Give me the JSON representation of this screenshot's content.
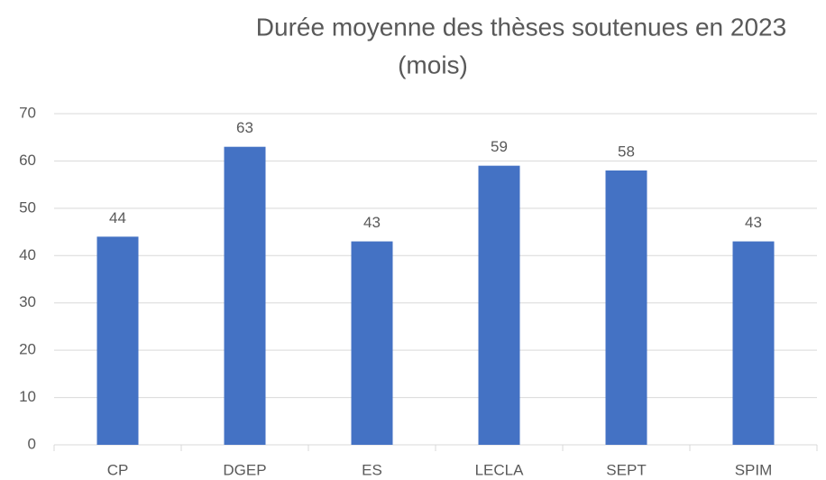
{
  "chart_data": {
    "type": "bar",
    "title": [
      "Durée moyenne des thèses soutenues en 2023",
      "(mois)"
    ],
    "categories": [
      "CP",
      "DGEP",
      "ES",
      "LECLA",
      "SEPT",
      "SPIM"
    ],
    "values": [
      44,
      63,
      43,
      59,
      58,
      43
    ],
    "color": "#4472c4",
    "ylim": [
      0,
      70
    ],
    "yticks": [
      0,
      10,
      20,
      30,
      40,
      50,
      60,
      70
    ],
    "grid": true,
    "data_labels": true
  }
}
